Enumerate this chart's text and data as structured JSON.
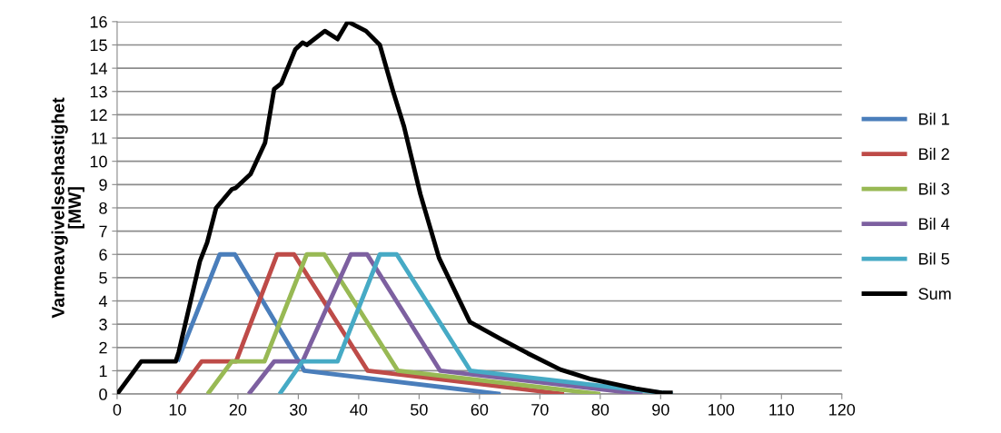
{
  "chart_data": {
    "type": "line",
    "ylabel": "Varmeavgivelseshastighet\n[MW]",
    "xlim": [
      0,
      120
    ],
    "xticks": [
      0,
      10,
      20,
      30,
      40,
      50,
      60,
      70,
      80,
      90,
      100,
      110,
      120
    ],
    "ylim": [
      0,
      16
    ],
    "yticks": [
      0,
      1,
      2,
      3,
      4,
      5,
      6,
      7,
      8,
      9,
      10,
      11,
      12,
      13,
      14,
      15,
      16
    ],
    "grid": "y",
    "legend": "right",
    "marker": "none",
    "line_style": "solid",
    "series": [
      {
        "name": "Bil 1",
        "color": "#4a7ebb",
        "x": [
          10,
          17,
          19.5,
          31,
          63.5
        ],
        "values": [
          1.4,
          6,
          6,
          1,
          0
        ]
      },
      {
        "name": "Bil 2",
        "color": "#be4b48",
        "x": [
          10,
          14,
          19.7,
          26.5,
          29.3,
          41.5,
          74
        ],
        "values": [
          0,
          1.4,
          1.4,
          6,
          6,
          1,
          0
        ]
      },
      {
        "name": "Bil 3",
        "color": "#98b954",
        "x": [
          15,
          19,
          24.4,
          31.4,
          34.3,
          46.5,
          80
        ],
        "values": [
          0,
          1.4,
          1.4,
          6,
          6,
          1,
          0
        ]
      },
      {
        "name": "Bil 4",
        "color": "#7d60a0",
        "x": [
          21.8,
          26,
          30.7,
          38.7,
          41.4,
          53.5,
          87
        ],
        "values": [
          0,
          1.4,
          1.4,
          6,
          6,
          1,
          0
        ]
      },
      {
        "name": "Bil 5",
        "color": "#46aac5",
        "x": [
          26.9,
          30.7,
          36.5,
          43.5,
          46.3,
          58.5,
          92
        ],
        "values": [
          0,
          1.4,
          1.4,
          6,
          6,
          1,
          0
        ]
      },
      {
        "name": "Sum",
        "color": "#000000",
        "x": [
          0,
          4,
          9.7,
          10.2,
          13.7,
          14.9,
          16.4,
          19,
          19.6,
          22.1,
          24.5,
          26,
          27.2,
          29.5,
          30.7,
          31.4,
          34.4,
          36.5,
          38.2,
          41.2,
          43.5,
          45.7,
          47.5,
          50.2,
          53.3,
          58.4,
          63.3,
          68,
          73.4,
          78.3,
          85.9,
          90.4,
          92
        ],
        "values": [
          0,
          1.4,
          1.4,
          1.8,
          5.7,
          6.5,
          8.0,
          8.8,
          8.85,
          9.45,
          10.8,
          13.1,
          13.35,
          14.8,
          15.1,
          15.0,
          15.6,
          15.25,
          16.0,
          15.6,
          15.0,
          13.0,
          11.5,
          8.6,
          5.85,
          3.1,
          2.4,
          1.75,
          1.05,
          0.65,
          0.23,
          0.05,
          0.05
        ]
      }
    ]
  }
}
